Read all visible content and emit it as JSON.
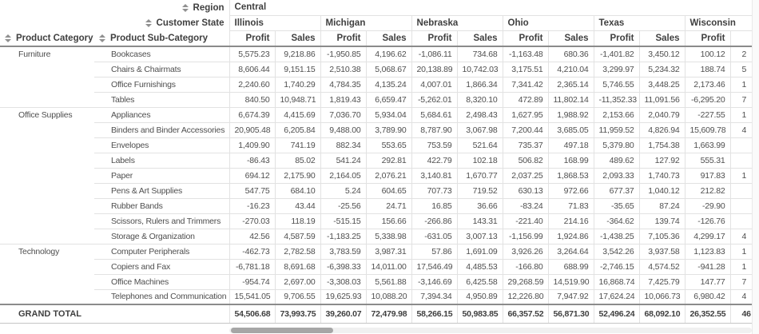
{
  "colors": {
    "background": "#ffffff",
    "text": "#4f4f4f",
    "header_text": "#3f3f3f",
    "border_light": "#e2e2e2",
    "border_dark": "#8b8b8b",
    "scrollbar_track": "#f0f0f0",
    "scrollbar_thumb": "#a6a6a6"
  },
  "icons": {
    "sort": "up-down-triangles"
  },
  "pivot": {
    "region_label": "Region",
    "region_value": "Central",
    "customer_state_label": "Customer State",
    "row_dims": [
      "Product Category",
      "Product Sub-Category"
    ],
    "states": [
      "Illinois",
      "Michigan",
      "Nebraska",
      "Ohio",
      "Texas",
      "Wisconsin"
    ],
    "measures": [
      "Profit",
      "Sales"
    ],
    "groups": [
      {
        "category": "Furniture",
        "rows": [
          {
            "name": "Bookcases",
            "values": [
              "5,575.23",
              "9,218.86",
              "-1,950.85",
              "4,196.62",
              "-1,086.11",
              "734.68",
              "-1,163.48",
              "680.36",
              "-1,401.82",
              "3,450.12",
              "100.12",
              "2"
            ]
          },
          {
            "name": "Chairs & Chairmats",
            "values": [
              "8,606.44",
              "9,151.15",
              "2,510.38",
              "5,068.67",
              "20,138.89",
              "10,742.03",
              "3,175.51",
              "4,210.04",
              "3,299.97",
              "5,234.32",
              "188.74",
              "5"
            ]
          },
          {
            "name": "Office Furnishings",
            "values": [
              "2,240.60",
              "1,740.29",
              "4,784.35",
              "4,135.24",
              "4,007.01",
              "1,866.34",
              "7,341.42",
              "2,365.14",
              "5,746.55",
              "3,448.25",
              "2,173.46",
              "1"
            ]
          },
          {
            "name": "Tables",
            "values": [
              "840.50",
              "10,948.71",
              "1,819.43",
              "6,659.47",
              "-5,262.01",
              "8,320.10",
              "472.89",
              "11,802.14",
              "-11,352.33",
              "11,091.56",
              "-6,295.20",
              "7"
            ]
          }
        ]
      },
      {
        "category": "Office Supplies",
        "rows": [
          {
            "name": "Appliances",
            "values": [
              "6,674.39",
              "4,415.69",
              "7,036.70",
              "5,934.04",
              "5,684.61",
              "2,498.43",
              "1,627.95",
              "1,988.92",
              "2,153.66",
              "2,040.79",
              "-227.55",
              "1"
            ]
          },
          {
            "name": "Binders and Binder Accessories",
            "values": [
              "20,905.48",
              "6,205.84",
              "9,488.00",
              "3,789.90",
              "8,787.90",
              "3,067.98",
              "7,200.44",
              "3,685.05",
              "11,959.52",
              "4,826.94",
              "15,609.78",
              "4"
            ]
          },
          {
            "name": "Envelopes",
            "values": [
              "1,409.90",
              "741.19",
              "882.34",
              "553.65",
              "753.59",
              "521.64",
              "735.37",
              "497.18",
              "5,379.80",
              "1,754.38",
              "1,663.99",
              ""
            ]
          },
          {
            "name": "Labels",
            "values": [
              "-86.43",
              "85.02",
              "541.24",
              "292.81",
              "422.79",
              "102.18",
              "506.82",
              "168.99",
              "489.62",
              "127.92",
              "555.31",
              ""
            ]
          },
          {
            "name": "Paper",
            "values": [
              "694.12",
              "2,175.90",
              "2,164.05",
              "2,076.21",
              "3,140.81",
              "1,670.77",
              "2,037.25",
              "1,868.53",
              "2,093.33",
              "1,740.73",
              "917.83",
              "1"
            ]
          },
          {
            "name": "Pens & Art Supplies",
            "values": [
              "547.75",
              "684.10",
              "5.24",
              "604.65",
              "707.73",
              "719.52",
              "630.13",
              "972.66",
              "677.37",
              "1,040.12",
              "212.82",
              ""
            ]
          },
          {
            "name": "Rubber Bands",
            "values": [
              "-16.23",
              "43.44",
              "-25.56",
              "24.71",
              "16.85",
              "36.66",
              "-83.24",
              "71.83",
              "-35.65",
              "87.24",
              "-29.90",
              ""
            ]
          },
          {
            "name": "Scissors, Rulers and Trimmers",
            "values": [
              "-270.03",
              "118.19",
              "-515.15",
              "156.66",
              "-266.86",
              "143.31",
              "-221.40",
              "214.16",
              "-364.62",
              "139.74",
              "-126.76",
              ""
            ]
          },
          {
            "name": "Storage & Organization",
            "values": [
              "42.56",
              "4,587.59",
              "-1,183.25",
              "5,338.98",
              "-631.05",
              "3,007.13",
              "-1,156.99",
              "1,924.86",
              "-1,438.25",
              "7,105.36",
              "4,299.17",
              "4"
            ]
          }
        ]
      },
      {
        "category": "Technology",
        "rows": [
          {
            "name": "Computer Peripherals",
            "values": [
              "-462.73",
              "2,782.58",
              "3,783.59",
              "3,987.31",
              "57.86",
              "1,691.09",
              "3,926.26",
              "3,264.64",
              "3,542.26",
              "3,937.58",
              "1,123.83",
              "1"
            ]
          },
          {
            "name": "Copiers and Fax",
            "values": [
              "-6,781.18",
              "8,691.68",
              "-6,398.33",
              "14,011.00",
              "17,546.49",
              "4,485.53",
              "-166.80",
              "688.99",
              "-2,746.15",
              "4,574.52",
              "-941.28",
              "1"
            ]
          },
          {
            "name": "Office Machines",
            "values": [
              "-954.74",
              "2,697.00",
              "-3,308.03",
              "5,561.88",
              "-3,146.69",
              "6,425.58",
              "29,268.59",
              "14,519.90",
              "16,868.74",
              "7,425.79",
              "147.77",
              "7"
            ]
          },
          {
            "name": "Telephones and Communication",
            "values": [
              "15,541.05",
              "9,706.55",
              "19,625.93",
              "10,088.20",
              "7,394.34",
              "4,950.89",
              "12,226.80",
              "7,947.92",
              "17,624.24",
              "10,066.73",
              "6,980.42",
              "4"
            ]
          }
        ]
      }
    ],
    "grand_total": {
      "label": "GRAND TOTAL",
      "values": [
        "54,506.68",
        "73,993.75",
        "39,260.07",
        "72,479.98",
        "58,266.15",
        "50,983.85",
        "66,357.52",
        "56,871.30",
        "52,496.24",
        "68,092.10",
        "26,352.55",
        "46"
      ]
    }
  }
}
